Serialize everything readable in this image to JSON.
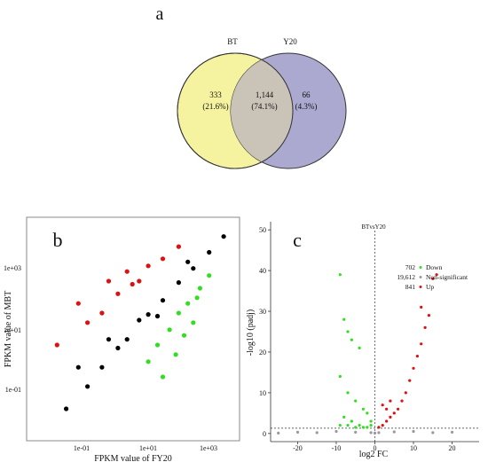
{
  "panels": {
    "a": {
      "label": "a",
      "sets": [
        {
          "name": "BT",
          "color": "#f5f3a0"
        },
        {
          "name": "Y20",
          "color": "#9e9ac8"
        }
      ],
      "regions": [
        {
          "count": "333",
          "pct": "(21.6%)"
        },
        {
          "count": "1,144",
          "pct": "(74.1%)"
        },
        {
          "count": "66",
          "pct": "(4.3%)"
        }
      ]
    },
    "b": {
      "label": "b",
      "xlabel": "FPKM value of FY20",
      "ylabel": "FPKM value of MBT",
      "xticks": [
        "1e-01",
        "1e+01",
        "1e+03"
      ],
      "yticks": [
        "1e-01",
        "1e+01",
        "1e+03"
      ]
    },
    "c": {
      "label": "c",
      "title": "BTvsY20",
      "xlabel": "log2 FC",
      "ylabel": "-log10 (padj)",
      "xticks": [
        "-20",
        "-10",
        "0",
        "10",
        "20"
      ],
      "yticks": [
        "0",
        "10",
        "20",
        "30",
        "40",
        "50"
      ],
      "legend": [
        {
          "count": "702",
          "name": "Down",
          "color": "#33dd22"
        },
        {
          "count": "19,612",
          "name": "Non-significant",
          "color": "#999999"
        },
        {
          "count": "841",
          "name": "Up",
          "color": "#dd1111"
        }
      ]
    }
  },
  "chart_data": [
    {
      "type": "scatter",
      "panel": "b",
      "xlabel": "FPKM value of FY20",
      "ylabel": "FPKM value of MBT",
      "log_axes": true,
      "xlim": [
        0.001,
        10000
      ],
      "ylim": [
        0.001,
        10000
      ],
      "series": [
        {
          "name": "non-significant",
          "color": "#000000",
          "points": [
            [
              0.1,
              0.05
            ],
            [
              0.3,
              0.2
            ],
            [
              1,
              0.8
            ],
            [
              2,
              1.5
            ],
            [
              5,
              6
            ],
            [
              10,
              9
            ],
            [
              30,
              25
            ],
            [
              100,
              90
            ],
            [
              300,
              250
            ],
            [
              1000,
              800
            ],
            [
              3000,
              2500
            ],
            [
              0.05,
              0.2
            ],
            [
              0.5,
              1.5
            ],
            [
              20,
              8
            ],
            [
              200,
              400
            ],
            [
              0.02,
              0.01
            ]
          ]
        },
        {
          "name": "up",
          "color": "#dd1111",
          "points": [
            [
              0.01,
              1
            ],
            [
              0.1,
              5
            ],
            [
              0.3,
              10
            ],
            [
              1,
              40
            ],
            [
              3,
              80
            ],
            [
              10,
              300
            ],
            [
              30,
              500
            ],
            [
              100,
              1200
            ],
            [
              0.05,
              20
            ],
            [
              0.5,
              100
            ],
            [
              2,
              200
            ],
            [
              5,
              100
            ]
          ]
        },
        {
          "name": "down",
          "color": "#33dd22",
          "points": [
            [
              10,
              0.3
            ],
            [
              20,
              1
            ],
            [
              50,
              3
            ],
            [
              100,
              10
            ],
            [
              200,
              20
            ],
            [
              500,
              60
            ],
            [
              1000,
              150
            ],
            [
              30,
              0.1
            ],
            [
              80,
              0.5
            ],
            [
              300,
              5
            ],
            [
              150,
              2
            ],
            [
              400,
              30
            ]
          ]
        }
      ]
    },
    {
      "type": "scatter",
      "panel": "c",
      "title": "BTvsY20",
      "xlabel": "log2 FC",
      "ylabel": "-log10 (padj)",
      "xlim": [
        -27,
        27
      ],
      "ylim": [
        -2,
        52
      ],
      "series": [
        {
          "name": "Down",
          "color": "#33dd22",
          "points": [
            [
              -9,
              39
            ],
            [
              -8,
              28
            ],
            [
              -7,
              25
            ],
            [
              -6,
              23
            ],
            [
              -4,
              21
            ],
            [
              -9,
              14
            ],
            [
              -7,
              10
            ],
            [
              -5,
              8
            ],
            [
              -3,
              6
            ],
            [
              -2,
              5
            ],
            [
              -8,
              4
            ],
            [
              -6,
              3
            ],
            [
              -4,
              2
            ],
            [
              -1,
              3
            ],
            [
              -9,
              2
            ],
            [
              -3,
              1.5
            ],
            [
              -5,
              1.5
            ],
            [
              -7,
              2
            ],
            [
              -2,
              1.5
            ],
            [
              -1,
              2
            ]
          ]
        },
        {
          "name": "Non-significant",
          "color": "#999999",
          "points": [
            [
              -10,
              0.5
            ],
            [
              -5,
              0.3
            ],
            [
              -1,
              0.2
            ],
            [
              0,
              0.1
            ],
            [
              1,
              0.2
            ],
            [
              5,
              0.4
            ],
            [
              10,
              0.5
            ],
            [
              15,
              0.2
            ],
            [
              -20,
              0.3
            ],
            [
              20,
              0.3
            ],
            [
              -15,
              0.2
            ],
            [
              -25,
              0.1
            ]
          ]
        },
        {
          "name": "Up",
          "color": "#dd1111",
          "points": [
            [
              16,
              39
            ],
            [
              15,
              38
            ],
            [
              12,
              31
            ],
            [
              14,
              29
            ],
            [
              13,
              26
            ],
            [
              12,
              22
            ],
            [
              11,
              19
            ],
            [
              10,
              16
            ],
            [
              9,
              13
            ],
            [
              8,
              10
            ],
            [
              7,
              8
            ],
            [
              6,
              6
            ],
            [
              5,
              5
            ],
            [
              4,
              4
            ],
            [
              3,
              3
            ],
            [
              2,
              2
            ],
            [
              1,
              1.5
            ],
            [
              2,
              7
            ],
            [
              4,
              8
            ],
            [
              3,
              6
            ]
          ]
        }
      ]
    }
  ]
}
